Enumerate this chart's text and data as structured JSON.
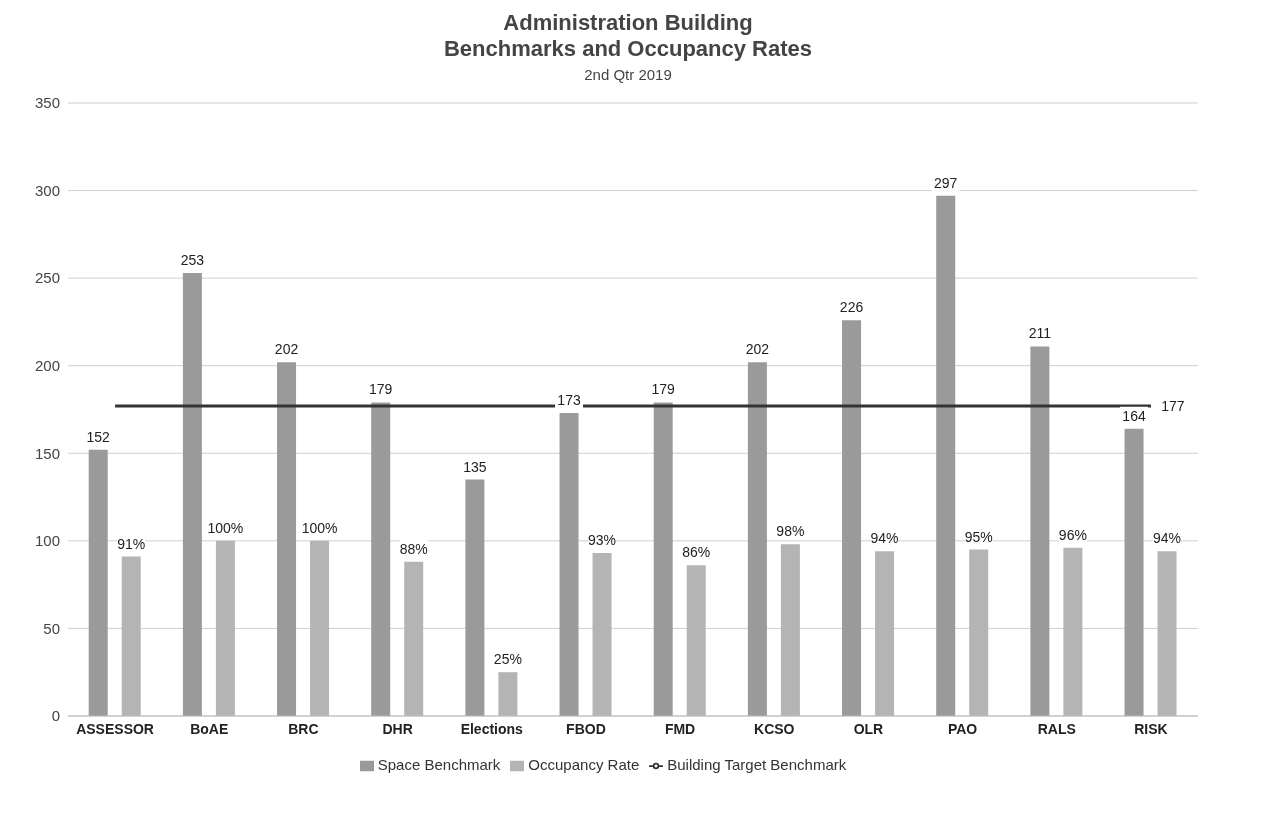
{
  "chart_data": {
    "type": "bar",
    "title": "Administration Building Benchmarks and Occupancy Rates",
    "subtitle": "2nd Qtr 2019",
    "categories": [
      "ASSESSOR",
      "BoAE",
      "BRC",
      "DHR",
      "Elections",
      "FBOD",
      "FMD",
      "KCSO",
      "OLR",
      "PAO",
      "RALS",
      "RISK"
    ],
    "series": [
      {
        "name": "Space Benchmark",
        "color": "#9a9a9a",
        "values": [
          152,
          253,
          202,
          179,
          135,
          173,
          179,
          202,
          226,
          297,
          211,
          164
        ],
        "value_labels": [
          "152",
          "253",
          "202",
          "179",
          "135",
          "173",
          "179",
          "202",
          "226",
          "297",
          "211",
          "164"
        ]
      },
      {
        "name": "Occupancy Rate",
        "color": "#b4b4b4",
        "values": [
          91,
          100,
          100,
          88,
          25,
          93,
          86,
          98,
          94,
          95,
          96,
          94
        ],
        "value_labels": [
          "91%",
          "100%",
          "100%",
          "88%",
          "25%",
          "93%",
          "86%",
          "98%",
          "94%",
          "95%",
          "96%",
          "94%"
        ]
      },
      {
        "name": "Building Target Benchmark",
        "type": "line",
        "color": "#333333",
        "values": [
          177,
          177,
          177,
          177,
          177,
          177,
          177,
          177,
          177,
          177,
          177,
          177
        ],
        "value_labels": [
          null,
          null,
          null,
          null,
          null,
          null,
          null,
          null,
          null,
          null,
          null,
          "177"
        ]
      }
    ],
    "ylim": [
      0,
      350
    ],
    "yticks": [
      0,
      50,
      100,
      150,
      200,
      250,
      300,
      350
    ],
    "grid": "y",
    "legend": "bottom"
  }
}
